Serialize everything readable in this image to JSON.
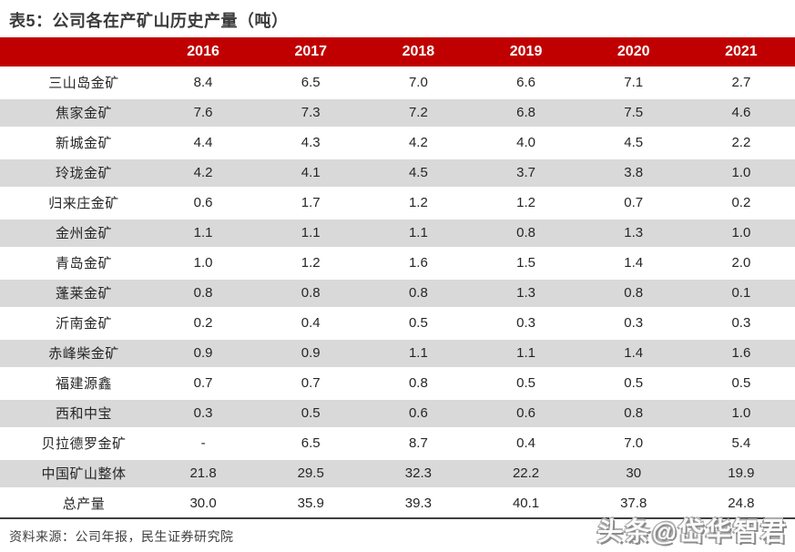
{
  "title": "表5：公司各在产矿山历史产量（吨）",
  "table": {
    "corner_label": "",
    "years": [
      "2016",
      "2017",
      "2018",
      "2019",
      "2020",
      "2021"
    ],
    "rows": [
      {
        "name": "三山岛金矿",
        "values": [
          "8.4",
          "6.5",
          "7.0",
          "6.6",
          "7.1",
          "2.7"
        ]
      },
      {
        "name": "焦家金矿",
        "values": [
          "7.6",
          "7.3",
          "7.2",
          "6.8",
          "7.5",
          "4.6"
        ]
      },
      {
        "name": "新城金矿",
        "values": [
          "4.4",
          "4.3",
          "4.2",
          "4.0",
          "4.5",
          "2.2"
        ]
      },
      {
        "name": "玲珑金矿",
        "values": [
          "4.2",
          "4.1",
          "4.5",
          "3.7",
          "3.8",
          "1.0"
        ]
      },
      {
        "name": "归来庄金矿",
        "values": [
          "0.6",
          "1.7",
          "1.2",
          "1.2",
          "0.7",
          "0.2"
        ]
      },
      {
        "name": "金州金矿",
        "values": [
          "1.1",
          "1.1",
          "1.1",
          "0.8",
          "1.3",
          "1.0"
        ]
      },
      {
        "name": "青岛金矿",
        "values": [
          "1.0",
          "1.2",
          "1.6",
          "1.5",
          "1.4",
          "2.0"
        ]
      },
      {
        "name": "蓬莱金矿",
        "values": [
          "0.8",
          "0.8",
          "0.8",
          "1.3",
          "0.8",
          "0.1"
        ]
      },
      {
        "name": "沂南金矿",
        "values": [
          "0.2",
          "0.4",
          "0.5",
          "0.3",
          "0.3",
          "0.3"
        ]
      },
      {
        "name": "赤峰柴金矿",
        "values": [
          "0.9",
          "0.9",
          "1.1",
          "1.1",
          "1.4",
          "1.6"
        ]
      },
      {
        "name": "福建源鑫",
        "values": [
          "0.7",
          "0.7",
          "0.8",
          "0.5",
          "0.5",
          "0.5"
        ]
      },
      {
        "name": "西和中宝",
        "values": [
          "0.3",
          "0.5",
          "0.6",
          "0.6",
          "0.8",
          "1.0"
        ]
      },
      {
        "name": "贝拉德罗金矿",
        "values": [
          "-",
          "6.5",
          "8.7",
          "0.4",
          "7.0",
          "5.4"
        ]
      },
      {
        "name": "中国矿山整体",
        "values": [
          "21.8",
          "29.5",
          "32.3",
          "22.2",
          "30",
          "19.9"
        ]
      },
      {
        "name": "总产量",
        "values": [
          "30.0",
          "35.9",
          "39.3",
          "40.1",
          "37.8",
          "24.8"
        ]
      }
    ]
  },
  "footer": {
    "source": "资料来源：公司年报，民生证券研究院"
  },
  "watermark": "头条@岱华智君",
  "colors": {
    "header_bg": "#c00000",
    "header_text": "#ffffff",
    "row_alt_bg": "#d9d9d9",
    "body_text": "#262626",
    "title_text": "#3a3a3a",
    "bottom_border": "#3f3f3f"
  }
}
